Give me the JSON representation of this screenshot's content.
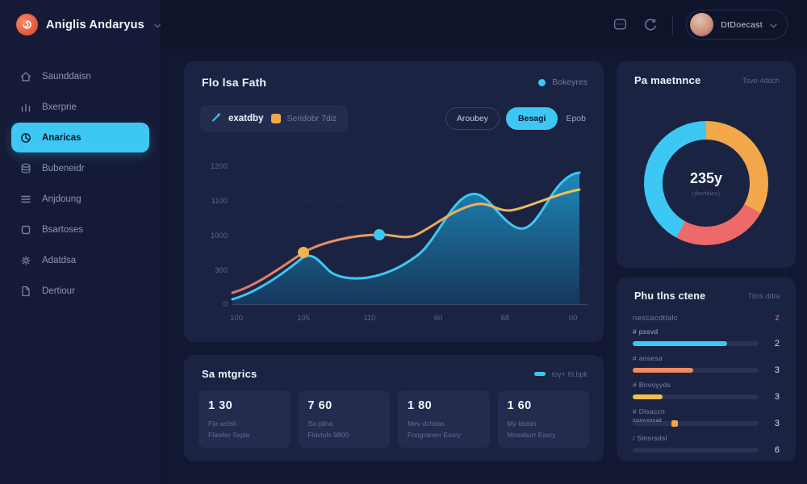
{
  "app": {
    "logo_text": "Aniglis Andaryus",
    "colors": {
      "accent_cyan": "#3cc8f2",
      "orange": "#f2a74b",
      "coral": "#ed6a6a",
      "yellow": "#f0c04e",
      "panel": "#1b2342"
    }
  },
  "header": {
    "user_name": "DtDoecast",
    "icons": [
      "chat-icon",
      "refresh-icon",
      "chevron-down-icon"
    ]
  },
  "sidebar": {
    "items": [
      {
        "label": "Saunddaisn",
        "icon": "home-icon",
        "active": false
      },
      {
        "label": "Bxerprie",
        "icon": "bar-chart-icon",
        "active": false
      },
      {
        "label": "Anaricas",
        "icon": "pie-chart-icon",
        "active": true
      },
      {
        "label": "Bubeneidr",
        "icon": "database-icon",
        "active": false
      },
      {
        "label": "Anjdoung",
        "icon": "list-icon",
        "active": false
      },
      {
        "label": "Bsartoses",
        "icon": "box-icon",
        "active": false
      },
      {
        "label": "Adatdsa",
        "icon": "gear-icon",
        "active": false
      },
      {
        "label": "Dertiour",
        "icon": "document-icon",
        "active": false
      }
    ]
  },
  "chart_panel": {
    "title": "Flo lsa Fath",
    "legend_top": "Bokeyres",
    "chip_series1": "exatdby",
    "chip_series2": "Seridobr 7diz",
    "button_outline": "Aroubey",
    "button_primary": "Besagi",
    "button_ghost": "Epob"
  },
  "chart_data": {
    "type": "area",
    "title": "Flo lsa Fath",
    "x_ticks": [
      "100",
      "105",
      "110",
      "60",
      "68",
      "00"
    ],
    "y_ticks": [
      "1200",
      "1100",
      "1000",
      "300",
      "0"
    ],
    "ylim": [
      0,
      1200
    ],
    "grid": "dashed-horizontal",
    "legend_position": "top-right",
    "series": [
      {
        "name": "exatdby",
        "color": "#3cc8f2",
        "style": "area",
        "x": [
          0,
          10,
          20,
          28,
          36,
          48,
          58,
          67,
          75,
          83,
          92,
          100
        ],
        "values": [
          40,
          180,
          500,
          330,
          300,
          420,
          560,
          1050,
          880,
          780,
          1000,
          1190
        ]
      },
      {
        "name": "Seridobr 7diz",
        "color": "#f2a74b",
        "style": "line",
        "x": [
          0,
          10,
          20,
          32,
          44,
          52,
          62,
          70,
          80,
          90,
          100
        ],
        "values": [
          90,
          260,
          510,
          620,
          700,
          660,
          800,
          960,
          930,
          1000,
          1090
        ]
      }
    ],
    "markers": [
      {
        "series": "Seridobr 7diz",
        "x": 20,
        "value": 510,
        "color": "#f2b34c"
      },
      {
        "series": "Seridobr 7diz",
        "x": 44,
        "value": 700,
        "color": "#3cc8f2"
      }
    ]
  },
  "metrics_panel": {
    "title": "Sa mtgrics",
    "legend": "toy+ fd.bpk",
    "cards": [
      {
        "value": "1 30",
        "line1": "Fla wclsh",
        "line2": "Flawter Sxpia"
      },
      {
        "value": "7 60",
        "line1": "Sa pliha",
        "line2": "Flavtuls 9800"
      },
      {
        "value": "1 80",
        "line1": "Mev dchdas",
        "line2": "Fnogranerr Easry"
      },
      {
        "value": "1 60",
        "line1": "My ldcbin",
        "line2": "Mosaburr Easry"
      }
    ]
  },
  "donut_panel": {
    "title": "Pa maetnnce",
    "subtitle": "Tsve-4ddch",
    "center_value": "235y",
    "center_label": "(dovtdwv)",
    "segments": [
      {
        "name": "orange",
        "color": "#f2a74b",
        "pct": 33
      },
      {
        "name": "red",
        "color": "#ed6a6a",
        "pct": 25
      },
      {
        "name": "cyan",
        "color": "#3cc8f2",
        "pct": 42
      }
    ]
  },
  "stats_panel": {
    "title": "Phu tlns ctene",
    "subtitle": "Tims ddta",
    "header_label": "nescacdtlalc",
    "header_value": "z",
    "rows": [
      {
        "label": "# pssvd",
        "value": "2",
        "pct": 75,
        "color": "#3cc8f2"
      },
      {
        "label": "# ansesa",
        "value": "3",
        "pct": 48,
        "color": "#f08a5c"
      },
      {
        "label": "# Bnvoyyds",
        "value": "3",
        "pct": 24,
        "color": "#f0c04e"
      },
      {
        "label": "# Dlsaccn",
        "value": "3",
        "pct": 0,
        "color": "transparent",
        "text": "xxunvvnnad"
      },
      {
        "label": "/ Smsrsdsl",
        "value": "6",
        "pct": 0,
        "color": "transparent"
      }
    ]
  }
}
